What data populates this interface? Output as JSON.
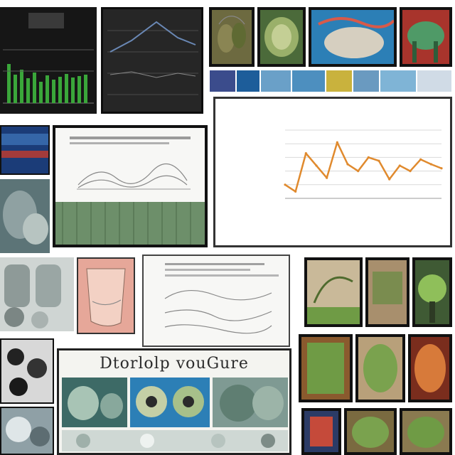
{
  "collage": {
    "caption_banner": "Dtorlolp vouGure",
    "strip_colors": [
      "#3b4c8c",
      "#1d5d9a",
      "#6aa0c8",
      "#4d8fbf",
      "#c9b23d",
      "#6a9ac0",
      "#7fb4d6",
      "#d0dbe6"
    ],
    "accent_colors": {
      "line_series": "#e08a2e",
      "bar_series": "#3aa63a",
      "foliage": "#6f9b45",
      "sea": "#2c7fb6",
      "paper": "#f7f7f5"
    }
  },
  "chart_data": {
    "type": "line",
    "title": "",
    "xlabel": "",
    "ylabel": "",
    "x": [
      1,
      2,
      3,
      4,
      5,
      6,
      7,
      8,
      9,
      10,
      11,
      12,
      13,
      14,
      15,
      16
    ],
    "series": [
      {
        "values": [
          20,
          10,
          66,
          48,
          30,
          82,
          50,
          40,
          60,
          55,
          28,
          48,
          40,
          57,
          50,
          44
        ]
      }
    ],
    "ylim": [
      0,
      100
    ],
    "grid": true
  }
}
